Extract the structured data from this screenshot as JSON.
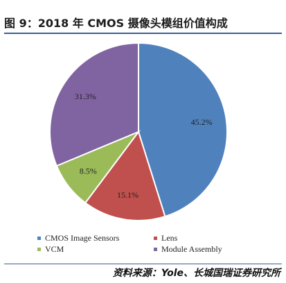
{
  "header": {
    "title": "图 9：2018 年 CMOS 摄像头模组价值构成"
  },
  "footer": {
    "source": "资料来源：Yole、长城国瑞证券研究所"
  },
  "chart_data": {
    "type": "pie",
    "start_angle_deg": 0,
    "direction": "clockwise",
    "slices": [
      {
        "label": "CMOS Image Sensors",
        "value": 45.2,
        "display": "45.2%",
        "color": "#4f81bd"
      },
      {
        "label": "Lens",
        "value": 15.1,
        "display": "15.1%",
        "color": "#c0504d"
      },
      {
        "label": "VCM",
        "value": 8.5,
        "display": "8.5%",
        "color": "#9bbb59"
      },
      {
        "label": "Module Assembly",
        "value": 31.3,
        "display": "31.3%",
        "color": "#8064a2"
      }
    ],
    "legend": {
      "placement": "bottom",
      "columns": 2
    }
  }
}
